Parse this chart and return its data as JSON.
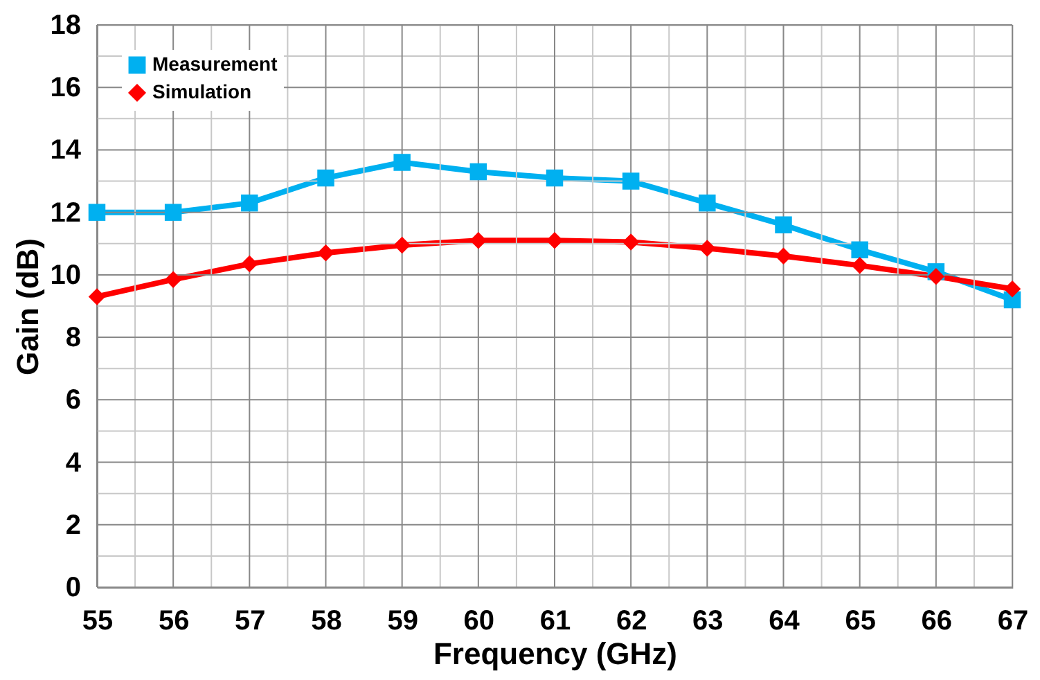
{
  "chart_data": {
    "type": "line",
    "xlabel": "Frequency (GHz)",
    "ylabel": "Gain (dB)",
    "x": [
      55,
      56,
      57,
      58,
      59,
      60,
      61,
      62,
      63,
      64,
      65,
      66,
      67
    ],
    "series": [
      {
        "name": "Measurement",
        "color": "#00b0f0",
        "marker": "square",
        "values": [
          12.0,
          12.0,
          12.3,
          13.1,
          13.6,
          13.3,
          13.1,
          13.0,
          12.3,
          11.6,
          10.8,
          10.1,
          9.2
        ]
      },
      {
        "name": "Simulation",
        "color": "#ff0000",
        "marker": "diamond",
        "values": [
          9.3,
          9.85,
          10.35,
          10.7,
          10.95,
          11.1,
          11.1,
          11.05,
          10.85,
          10.6,
          10.3,
          9.95,
          9.55
        ]
      }
    ],
    "xlim": [
      55,
      67
    ],
    "xticks": [
      55,
      {
        "value": 55.5,
        "label": null
      },
      56,
      {
        "value": 56.5,
        "label": null
      },
      57,
      {
        "value": 57.5,
        "label": null
      },
      58,
      {
        "value": 58.5,
        "label": null
      },
      59,
      {
        "value": 59.5,
        "label": null
      },
      60,
      {
        "value": 60.5,
        "label": null
      },
      61,
      {
        "value": 61.5,
        "label": null
      },
      62,
      {
        "value": 62.5,
        "label": null
      },
      63,
      {
        "value": 63.5,
        "label": null
      },
      64,
      {
        "value": 64.5,
        "label": null
      },
      65,
      {
        "value": 65.5,
        "label": null
      },
      66,
      {
        "value": 66.5,
        "label": null
      },
      67
    ],
    "ylim": [
      0,
      18
    ],
    "yticks": [
      0,
      {
        "value": 1,
        "label": null
      },
      2,
      {
        "value": 3,
        "label": null
      },
      4,
      {
        "value": 5,
        "label": null
      },
      6,
      {
        "value": 7,
        "label": null
      },
      8,
      {
        "value": 9,
        "label": null
      },
      10,
      {
        "value": 11,
        "label": null
      },
      12,
      {
        "value": 13,
        "label": null
      },
      14,
      {
        "value": 15,
        "label": null
      },
      16,
      {
        "value": 17,
        "label": null
      },
      18
    ],
    "grid": true,
    "legend": "top left",
    "line_style": "solid"
  }
}
